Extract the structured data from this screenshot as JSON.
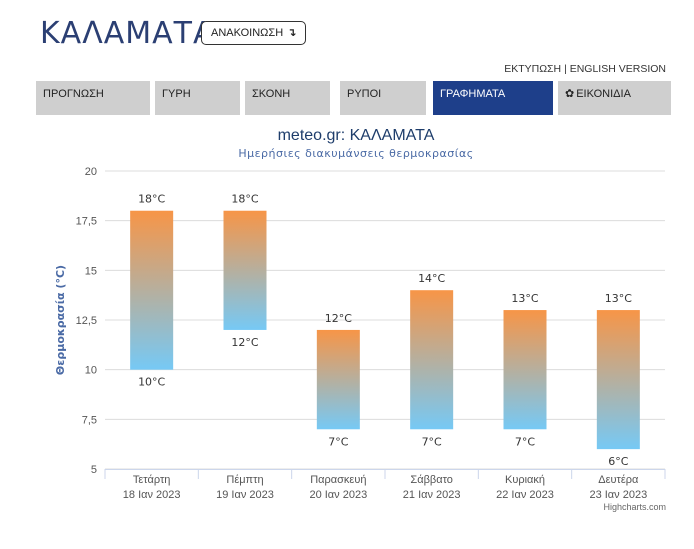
{
  "header": {
    "city": "ΚΑΛΑΜΑΤΑ",
    "announce_label": "ΑΝΑΚΟΙΝΩΣΗ",
    "announce_arrow": "↴",
    "print_label": "ΕΚΤΥΠΩΣΗ",
    "separator": "|",
    "english_label": "ENGLISH VERSION"
  },
  "tabs": [
    {
      "label": "ΠΡΟΓΝΩΣΗ",
      "active": false
    },
    {
      "label": "ΓΥΡΗ",
      "active": false
    },
    {
      "label": "ΣΚΟΝΗ",
      "active": false
    },
    {
      "label": "ΡΥΠΟΙ",
      "active": false
    },
    {
      "label": "ΓΡΑΦΗΜΑΤΑ",
      "active": true
    },
    {
      "label": "ΕΙΚΟΝΙΔΙΑ",
      "active": false,
      "icon": "gear-icon",
      "icon_glyph": "✿"
    }
  ],
  "colors": {
    "accent": "#1e3f8a",
    "tab_bg": "#cfcfcf",
    "title": "#2b3f73",
    "bar_top": "#f79547",
    "bar_bottom": "#76c9f5"
  },
  "chart_data": {
    "type": "columnrange",
    "title": "meteo.gr: ΚΑΛΑΜΑΤΑ",
    "subtitle": "Ημερήσιες διακυμάνσεις θερμοκρασίας",
    "ylabel": "Θερμοκρασία (°C)",
    "xlabel": "",
    "ylim": [
      5,
      20
    ],
    "yticks": [
      "5",
      "7,5",
      "10",
      "12,5",
      "15",
      "17,5",
      "20"
    ],
    "ytick_values": [
      5,
      7.5,
      10,
      12.5,
      15,
      17.5,
      20
    ],
    "grid": true,
    "categories": [
      {
        "day": "Τετάρτη",
        "date": "18 Ιαν 2023"
      },
      {
        "day": "Πέμπτη",
        "date": "19 Ιαν 2023"
      },
      {
        "day": "Παρασκευή",
        "date": "20 Ιαν 2023"
      },
      {
        "day": "Σάββατο",
        "date": "21 Ιαν 2023"
      },
      {
        "day": "Κυριακή",
        "date": "22 Ιαν 2023"
      },
      {
        "day": "Δευτέρα",
        "date": "23 Ιαν 2023"
      }
    ],
    "low": [
      10,
      12,
      7,
      7,
      7,
      6
    ],
    "high": [
      18,
      18,
      12,
      14,
      13,
      13
    ],
    "low_labels": [
      "10°C",
      "12°C",
      "7°C",
      "7°C",
      "7°C",
      "6°C"
    ],
    "high_labels": [
      "18°C",
      "18°C",
      "12°C",
      "14°C",
      "13°C",
      "13°C"
    ],
    "credit": "Highcharts.com"
  }
}
